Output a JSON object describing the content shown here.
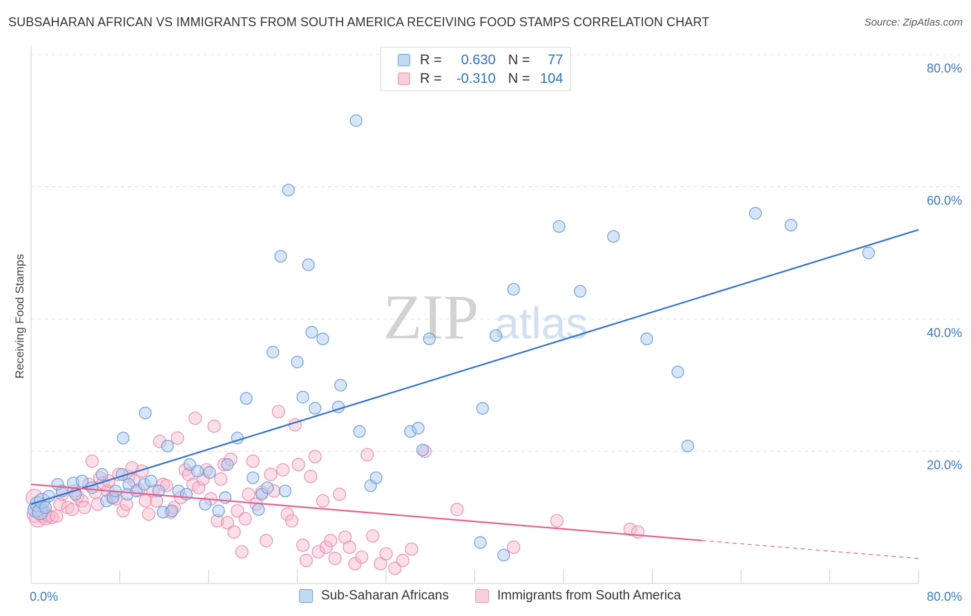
{
  "title": "SUBSAHARAN AFRICAN VS IMMIGRANTS FROM SOUTH AMERICA RECEIVING FOOD STAMPS CORRELATION CHART",
  "source": "Source: ZipAtlas.com",
  "watermark": {
    "zip": "ZIP",
    "atlas": "atlas"
  },
  "legend": {
    "r_label": "R =",
    "n_label": "N =",
    "series1": {
      "r": "0.630",
      "n": "77"
    },
    "series2": {
      "r": "-0.310",
      "n": "104"
    }
  },
  "bottom_legend": {
    "series1": "Sub-Saharan Africans",
    "series2": "Immigrants from South America"
  },
  "colors": {
    "blue_fill": "#aecbef",
    "blue_stroke": "#6f9fd8",
    "blue_line": "#2f72d0",
    "pink_fill": "#f6b9cc",
    "pink_stroke": "#ee8fb0",
    "pink_line": "#e8608f",
    "axis_text": "#3a78c8",
    "grid": "#dddddd"
  },
  "chart_data": {
    "type": "scatter",
    "title": "SUBSAHARAN AFRICAN VS IMMIGRANTS FROM SOUTH AMERICA RECEIVING FOOD STAMPS CORRELATION CHART",
    "xlabel": "",
    "ylabel": "Receiving Food Stamps",
    "xlim": [
      0,
      80
    ],
    "ylim": [
      0,
      80
    ],
    "x_tick_labels": [
      "0.0%",
      "80.0%"
    ],
    "y_ticks": [
      20,
      40,
      60,
      80
    ],
    "y_tick_labels": [
      "20.0%",
      "40.0%",
      "60.0%",
      "80.0%"
    ],
    "grid": true,
    "series": [
      {
        "name": "Sub-Saharan Africans",
        "r": 0.63,
        "n": 77,
        "trend": {
          "x0": 0,
          "y0": 12.0,
          "x1": 80,
          "y1": 53.5
        },
        "points": [
          [
            0.4,
            11.2
          ],
          [
            0.6,
            12.0
          ],
          [
            0.8,
            10.8
          ],
          [
            1.0,
            12.5
          ],
          [
            1.3,
            11.5
          ],
          [
            1.6,
            13.2
          ],
          [
            2.4,
            15.0
          ],
          [
            2.8,
            14.0
          ],
          [
            3.8,
            15.2
          ],
          [
            4.0,
            13.5
          ],
          [
            4.6,
            15.5
          ],
          [
            5.5,
            14.5
          ],
          [
            6.4,
            16.5
          ],
          [
            6.8,
            12.5
          ],
          [
            7.4,
            13.0
          ],
          [
            7.6,
            14.0
          ],
          [
            8.2,
            16.5
          ],
          [
            8.3,
            22.0
          ],
          [
            8.7,
            13.5
          ],
          [
            8.8,
            15.0
          ],
          [
            9.5,
            14.0
          ],
          [
            10.2,
            15.0
          ],
          [
            10.3,
            25.8
          ],
          [
            10.8,
            15.5
          ],
          [
            11.5,
            14.0
          ],
          [
            11.9,
            10.8
          ],
          [
            12.3,
            20.8
          ],
          [
            12.7,
            11.0
          ],
          [
            13.3,
            14.0
          ],
          [
            14.0,
            13.5
          ],
          [
            14.3,
            18.0
          ],
          [
            15.0,
            17.0
          ],
          [
            15.7,
            12.0
          ],
          [
            16.1,
            16.8
          ],
          [
            16.9,
            11.0
          ],
          [
            17.5,
            13.0
          ],
          [
            17.7,
            18.0
          ],
          [
            18.6,
            22.0
          ],
          [
            19.4,
            28.0
          ],
          [
            20.0,
            16.0
          ],
          [
            20.5,
            11.2
          ],
          [
            20.8,
            13.5
          ],
          [
            21.3,
            14.5
          ],
          [
            21.8,
            35.0
          ],
          [
            22.5,
            49.5
          ],
          [
            22.9,
            14.0
          ],
          [
            23.2,
            59.5
          ],
          [
            24.0,
            33.5
          ],
          [
            24.5,
            28.2
          ],
          [
            25.0,
            48.2
          ],
          [
            25.3,
            38.0
          ],
          [
            25.6,
            26.5
          ],
          [
            26.3,
            37.0
          ],
          [
            27.7,
            26.7
          ],
          [
            27.9,
            30.0
          ],
          [
            29.3,
            70.0
          ],
          [
            29.6,
            23.0
          ],
          [
            30.6,
            14.8
          ],
          [
            31.1,
            16.0
          ],
          [
            34.2,
            23.0
          ],
          [
            34.9,
            23.5
          ],
          [
            35.3,
            20.2
          ],
          [
            35.9,
            37.0
          ],
          [
            40.5,
            6.2
          ],
          [
            40.7,
            26.5
          ],
          [
            41.9,
            37.5
          ],
          [
            42.6,
            4.3
          ],
          [
            43.5,
            44.5
          ],
          [
            47.6,
            54.0
          ],
          [
            49.5,
            44.2
          ],
          [
            52.5,
            52.5
          ],
          [
            55.5,
            37.0
          ],
          [
            58.3,
            32.0
          ],
          [
            59.2,
            20.8
          ],
          [
            65.3,
            56.0
          ],
          [
            68.5,
            54.2
          ],
          [
            75.5,
            50.0
          ]
        ]
      },
      {
        "name": "Immigrants from South America",
        "r": -0.31,
        "n": 104,
        "trend": {
          "x0": 0,
          "y0": 15.0,
          "x1": 60.5,
          "y1": 6.5,
          "dashed_to_x": 80,
          "dashed_to_y": 3.8
        },
        "points": [
          [
            0.3,
            13.0
          ],
          [
            0.4,
            10.5
          ],
          [
            0.6,
            9.8
          ],
          [
            0.9,
            11.0
          ],
          [
            1.1,
            10.5
          ],
          [
            1.3,
            9.8
          ],
          [
            1.6,
            10.2
          ],
          [
            1.9,
            10.0
          ],
          [
            2.3,
            10.2
          ],
          [
            2.6,
            12.0
          ],
          [
            2.8,
            13.5
          ],
          [
            3.3,
            11.5
          ],
          [
            3.7,
            11.2
          ],
          [
            3.9,
            14.0
          ],
          [
            4.2,
            13.2
          ],
          [
            4.6,
            12.5
          ],
          [
            4.8,
            11.5
          ],
          [
            5.2,
            15.0
          ],
          [
            5.5,
            18.5
          ],
          [
            5.8,
            13.8
          ],
          [
            6.0,
            12.0
          ],
          [
            6.2,
            16.0
          ],
          [
            6.5,
            15.2
          ],
          [
            6.9,
            14.0
          ],
          [
            7.0,
            15.5
          ],
          [
            7.3,
            13.0
          ],
          [
            7.6,
            12.8
          ],
          [
            7.9,
            16.5
          ],
          [
            8.3,
            11.0
          ],
          [
            8.6,
            12.0
          ],
          [
            8.8,
            16.2
          ],
          [
            9.1,
            17.5
          ],
          [
            9.3,
            15.5
          ],
          [
            9.7,
            14.2
          ],
          [
            10.0,
            17.0
          ],
          [
            10.3,
            12.5
          ],
          [
            10.6,
            10.5
          ],
          [
            11.0,
            14.0
          ],
          [
            11.3,
            12.5
          ],
          [
            11.6,
            21.5
          ],
          [
            11.9,
            15.0
          ],
          [
            12.2,
            14.8
          ],
          [
            12.6,
            10.8
          ],
          [
            12.9,
            11.5
          ],
          [
            13.2,
            22.0
          ],
          [
            13.5,
            13.0
          ],
          [
            13.9,
            17.2
          ],
          [
            14.2,
            16.5
          ],
          [
            14.6,
            15.0
          ],
          [
            14.8,
            25.0
          ],
          [
            15.1,
            14.5
          ],
          [
            15.5,
            15.8
          ],
          [
            15.8,
            17.2
          ],
          [
            16.2,
            12.8
          ],
          [
            16.5,
            23.8
          ],
          [
            16.8,
            9.5
          ],
          [
            17.1,
            15.8
          ],
          [
            17.4,
            18.0
          ],
          [
            17.7,
            9.2
          ],
          [
            18.0,
            18.8
          ],
          [
            18.3,
            7.8
          ],
          [
            18.6,
            11.0
          ],
          [
            19.0,
            4.8
          ],
          [
            19.3,
            9.8
          ],
          [
            19.6,
            13.5
          ],
          [
            20.0,
            18.5
          ],
          [
            20.3,
            12.0
          ],
          [
            20.8,
            13.8
          ],
          [
            21.2,
            6.5
          ],
          [
            21.6,
            16.5
          ],
          [
            21.9,
            14.0
          ],
          [
            22.3,
            26.0
          ],
          [
            22.7,
            17.2
          ],
          [
            23.1,
            10.5
          ],
          [
            23.5,
            9.5
          ],
          [
            23.8,
            24.0
          ],
          [
            24.1,
            18.0
          ],
          [
            24.5,
            5.8
          ],
          [
            24.8,
            3.5
          ],
          [
            25.2,
            16.2
          ],
          [
            25.6,
            19.2
          ],
          [
            25.9,
            4.8
          ],
          [
            26.3,
            12.5
          ],
          [
            26.6,
            5.5
          ],
          [
            27.0,
            6.5
          ],
          [
            27.4,
            3.8
          ],
          [
            27.8,
            13.5
          ],
          [
            28.3,
            7.0
          ],
          [
            28.7,
            5.5
          ],
          [
            29.2,
            3.0
          ],
          [
            29.8,
            4.0
          ],
          [
            30.3,
            19.5
          ],
          [
            30.8,
            7.2
          ],
          [
            31.5,
            3.0
          ],
          [
            32.0,
            4.5
          ],
          [
            32.8,
            2.3
          ],
          [
            33.5,
            3.5
          ],
          [
            34.3,
            5.2
          ],
          [
            35.5,
            20.0
          ],
          [
            38.4,
            11.2
          ],
          [
            43.5,
            5.5
          ],
          [
            47.4,
            9.5
          ],
          [
            54.0,
            8.2
          ],
          [
            54.7,
            7.8
          ]
        ]
      }
    ]
  }
}
